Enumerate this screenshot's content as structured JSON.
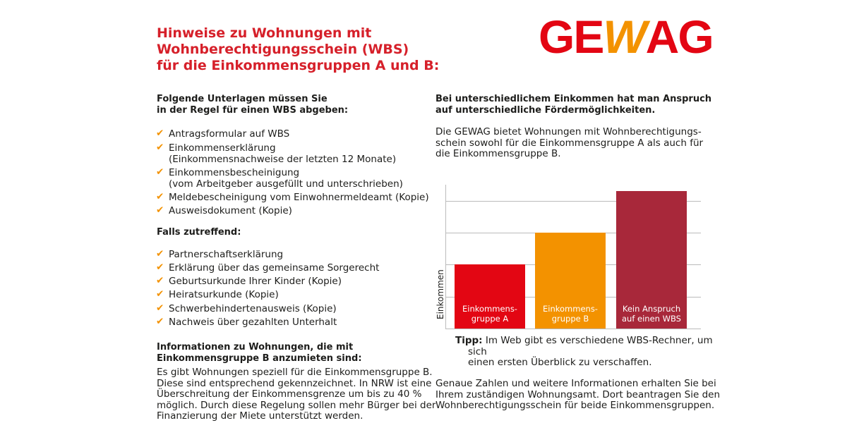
{
  "header": {
    "title": "Hinweise zu Wohnungen mit\nWohnberechtigungsschein (WBS)\nfür die Einkommensgruppen A und B:",
    "logo": [
      "GE",
      "W",
      "AG"
    ]
  },
  "left": {
    "section1": {
      "heading": "Folgende Unterlagen müssen Sie\nin der Regel für einen WBS abgeben:",
      "items": [
        "Antragsformular auf WBS",
        "Einkommenserklärung\n(Einkommensnachweise der letzten 12 Monate)",
        "Einkommensbescheinigung\n(vom Arbeitgeber ausgefüllt und unterschrieben)",
        "Meldebescheinigung vom Einwohnermeldeamt (Kopie)",
        "Ausweisdokument (Kopie)"
      ]
    },
    "section2": {
      "heading": "Falls zutreffend:",
      "items": [
        "Partnerschaftserklärung",
        "Erklärung über das gemeinsame Sorgerecht",
        "Geburtsurkunde Ihrer Kinder (Kopie)",
        "Heiratsurkunde (Kopie)",
        "Schwerbehindertenausweis (Kopie)",
        "Nachweis über gezahlten Unterhalt"
      ]
    },
    "section3": {
      "heading": "Informationen zu Wohnungen, die mit\nEinkommensgruppe B anzumieten sind:",
      "text": "Es gibt Wohnungen speziell für die Einkommensgruppe B.\nDiese sind entsprechend gekennzeichnet. In NRW ist eine\nÜberschreitung der Einkommensgrenze um bis zu 40 %\nmöglich. Durch diese Regelung sollen mehr Bürger bei der\nFinanzierung der Miete unterstützt werden."
    }
  },
  "right": {
    "heading": "Bei unterschiedlichem Einkommen hat man Anspruch\nauf unterschiedliche Fördermöglichkeiten.",
    "text": "Die GEWAG bietet Wohnungen mit Wohnberechtigungs-\nschein sowohl für die Einkommensgruppe A als auch für\ndie Einkommensgruppe B.",
    "tip": {
      "label": "Tipp:",
      "text": "Im Web gibt es verschiedene WBS-Rechner, um sich\neinen ersten Überblick zu verschaffen."
    },
    "closing": "Genaue Zahlen und weitere Informationen erhalten Sie bei\nIhrem zuständigen Wohnungsamt. Dort beantragen Sie den\nWohnberechtigungsschein für beide Einkommensgruppen."
  },
  "chart_data": {
    "type": "bar",
    "y_label": "Einkommen",
    "categories": [
      "Einkommens-\ngruppe A",
      "Einkommens-\ngruppe B",
      "Kein Anspruch\nauf einen WBS"
    ],
    "values": [
      2,
      3,
      4.3
    ],
    "colors": [
      "#e30613",
      "#f39200",
      "#a8283a"
    ],
    "ylim": [
      0,
      4.5
    ],
    "yticks": [
      0,
      1,
      2,
      3,
      4
    ],
    "grid": true
  }
}
